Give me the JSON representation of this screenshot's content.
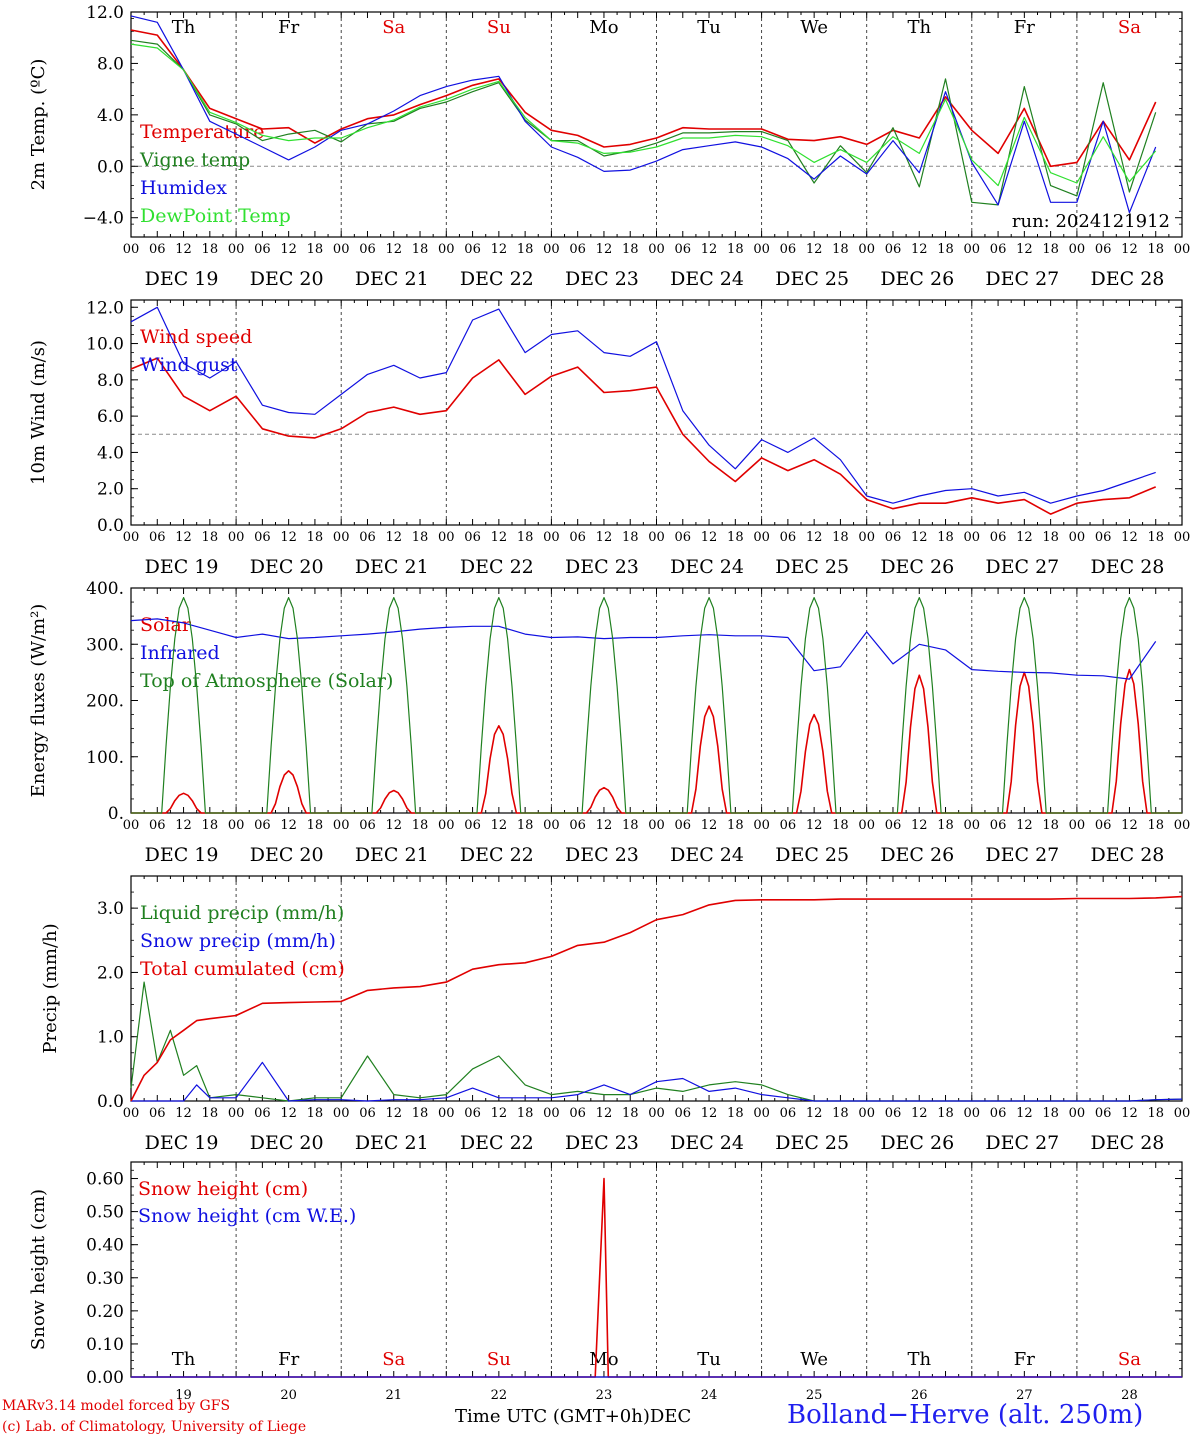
{
  "colors": {
    "red": "#e00000",
    "green": "#208020",
    "blue": "#1010e0",
    "lightgreen": "#30e030",
    "axis": "#000000",
    "refline": "#8a8a8a"
  },
  "x_axis": {
    "tick_hours": [
      "00",
      "06",
      "12",
      "18"
    ],
    "final_tick": "00",
    "dates": [
      "DEC 19",
      "DEC 20",
      "DEC 21",
      "DEC 22",
      "DEC 23",
      "DEC 24",
      "DEC 25",
      "DEC 26",
      "DEC 27",
      "DEC 28"
    ],
    "weekdays": [
      "Th",
      "Fr",
      "Sa",
      "Su",
      "Mo",
      "Tu",
      "We",
      "Th",
      "Fr",
      "Sa"
    ],
    "weekend_flags": [
      false,
      false,
      true,
      true,
      false,
      false,
      false,
      false,
      false,
      true
    ],
    "day_numbers": [
      "19",
      "20",
      "21",
      "22",
      "23",
      "24",
      "25",
      "26",
      "27",
      "28"
    ],
    "title": "Time UTC (GMT+0h)",
    "month": "DEC"
  },
  "footer": {
    "credit_line1": "MARv3.14 model forced by GFS",
    "credit_line2": "(c) Lab. of Climatology, University of Liege",
    "station": "Bolland−Herve (alt. 250m)"
  },
  "chart_data": [
    {
      "type": "line",
      "ylabel": "2m Temp. (ºC)",
      "ylim": [
        -5.5,
        12.0
      ],
      "yticks": [
        "12.0",
        "8.0",
        "4.0",
        "0.0",
        "−4.0"
      ],
      "ytick_values": [
        12,
        8,
        4,
        0,
        -4
      ],
      "reference_line": 0,
      "annotation": "run: 2024121912",
      "x_hours": [
        0,
        6,
        12,
        18,
        24,
        30,
        36,
        42,
        48,
        54,
        60,
        66,
        72,
        78,
        84,
        90,
        96,
        102,
        108,
        114,
        120,
        126,
        132,
        138,
        144,
        150,
        156,
        162,
        168,
        174,
        180,
        186,
        192,
        198,
        204,
        210,
        216,
        222,
        228,
        234
      ],
      "series": [
        {
          "name": "Temperature",
          "color_key": "red",
          "values": [
            10.6,
            10.2,
            7.5,
            4.5,
            3.7,
            2.9,
            3.0,
            1.8,
            2.9,
            3.7,
            4.0,
            4.8,
            5.5,
            6.3,
            6.8,
            4.2,
            2.8,
            2.4,
            1.5,
            1.7,
            2.2,
            3.0,
            2.9,
            2.9,
            2.9,
            2.1,
            2.0,
            2.3,
            1.7,
            2.8,
            2.2,
            5.4,
            2.8,
            1.0,
            4.5,
            0.0,
            0.3,
            3.5,
            0.5,
            5.0
          ]
        },
        {
          "name": "Vigne temp",
          "color_key": "green",
          "values": [
            9.8,
            9.5,
            7.5,
            4.0,
            3.3,
            2.0,
            2.5,
            2.8,
            1.9,
            3.3,
            3.5,
            4.5,
            5.0,
            5.8,
            6.5,
            3.6,
            2.0,
            2.0,
            0.8,
            1.2,
            1.8,
            2.6,
            2.6,
            2.7,
            2.7,
            2.0,
            -1.3,
            1.6,
            -0.5,
            3.0,
            -1.6,
            6.8,
            -2.8,
            -3.0,
            6.2,
            -1.5,
            -2.3,
            6.5,
            -2.0,
            4.2
          ]
        },
        {
          "name": "Humidex",
          "color_key": "blue",
          "values": [
            11.7,
            11.2,
            7.5,
            3.5,
            2.5,
            1.5,
            0.5,
            1.5,
            2.8,
            3.3,
            4.3,
            5.5,
            6.2,
            6.7,
            7.0,
            3.5,
            1.5,
            0.7,
            -0.4,
            -0.3,
            0.4,
            1.3,
            1.6,
            1.9,
            1.5,
            0.6,
            -1.0,
            0.8,
            -0.6,
            2.0,
            -0.5,
            5.8,
            0.3,
            -3.0,
            3.5,
            -2.8,
            -2.8,
            3.5,
            -3.6,
            1.5
          ]
        },
        {
          "name": "DewPoint Temp",
          "color_key": "lightgreen",
          "values": [
            9.5,
            9.2,
            7.5,
            4.2,
            3.4,
            2.4,
            2.0,
            2.2,
            2.2,
            3.0,
            3.6,
            4.6,
            5.2,
            6.0,
            6.6,
            3.8,
            2.0,
            1.8,
            1.0,
            1.1,
            1.5,
            2.2,
            2.2,
            2.4,
            2.3,
            1.6,
            0.3,
            1.3,
            0.3,
            2.3,
            1.0,
            5.2,
            0.5,
            -1.5,
            3.8,
            -0.5,
            -1.3,
            2.3,
            -1.2,
            1.2
          ]
        }
      ]
    },
    {
      "type": "line",
      "ylabel": "10m Wind (m/s)",
      "ylim": [
        0,
        12.4
      ],
      "yticks": [
        "12.0",
        "10.0",
        "8.0",
        "6.0",
        "4.0",
        "2.0",
        "0.0"
      ],
      "ytick_values": [
        12,
        10,
        8,
        6,
        4,
        2,
        0
      ],
      "reference_line": 5,
      "x_hours": [
        0,
        6,
        12,
        18,
        24,
        30,
        36,
        42,
        48,
        54,
        60,
        66,
        72,
        78,
        84,
        90,
        96,
        102,
        108,
        114,
        120,
        126,
        132,
        138,
        144,
        150,
        156,
        162,
        168,
        174,
        180,
        186,
        192,
        198,
        204,
        210,
        216,
        222,
        228,
        234
      ],
      "series": [
        {
          "name": "Wind speed",
          "color_key": "red",
          "values": [
            8.6,
            9.2,
            7.1,
            6.3,
            7.1,
            5.3,
            4.9,
            4.8,
            5.3,
            6.2,
            6.5,
            6.1,
            6.3,
            8.1,
            9.1,
            7.2,
            8.2,
            8.7,
            7.3,
            7.4,
            7.6,
            5.0,
            3.5,
            2.4,
            3.7,
            3.0,
            3.6,
            2.8,
            1.4,
            0.9,
            1.2,
            1.2,
            1.5,
            1.2,
            1.4,
            0.6,
            1.2,
            1.4,
            1.5,
            2.1
          ]
        },
        {
          "name": "Wind gust",
          "color_key": "blue",
          "values": [
            11.2,
            12.0,
            8.9,
            8.1,
            9.0,
            6.6,
            6.2,
            6.1,
            7.2,
            8.3,
            8.8,
            8.1,
            8.4,
            11.3,
            11.9,
            9.5,
            10.5,
            10.7,
            9.5,
            9.3,
            10.1,
            6.3,
            4.4,
            3.1,
            4.7,
            4.0,
            4.8,
            3.6,
            1.6,
            1.2,
            1.6,
            1.9,
            2.0,
            1.6,
            1.8,
            1.2,
            1.6,
            1.9,
            2.4,
            2.9
          ]
        }
      ]
    },
    {
      "type": "line",
      "ylabel": "Energy fluxes (W/m²)",
      "ylim": [
        0,
        400
      ],
      "yticks": [
        "400.",
        "300.",
        "200.",
        "100.",
        "0."
      ],
      "ytick_values": [
        400,
        300,
        200,
        100,
        0
      ],
      "x_hours": [
        0,
        6,
        12,
        18,
        24,
        30,
        36,
        42,
        48,
        54,
        60,
        66,
        72,
        78,
        84,
        90,
        96,
        102,
        108,
        114,
        120,
        126,
        132,
        138,
        144,
        150,
        156,
        162,
        168,
        174,
        180,
        186,
        192,
        198,
        204,
        210,
        216,
        222,
        228,
        234
      ],
      "series": [
        {
          "name": "Solar",
          "color_key": "red",
          "daily_peak_hour": 12,
          "daily_peaks": [
            35,
            75,
            40,
            155,
            45,
            190,
            175,
            245,
            250,
            255
          ]
        },
        {
          "name": "Infrared",
          "color_key": "blue",
          "values": [
            342,
            345,
            338,
            325,
            312,
            318,
            310,
            312,
            315,
            318,
            322,
            327,
            330,
            332,
            332,
            318,
            312,
            313,
            310,
            312,
            312,
            315,
            317,
            315,
            315,
            312,
            253,
            260,
            322,
            265,
            300,
            290,
            255,
            252,
            250,
            249,
            245,
            244,
            238,
            305
          ]
        },
        {
          "name": "Top of Atmosphere (Solar)",
          "color_key": "green",
          "daily_peak_hour": 12,
          "daily_peaks": [
            383,
            383,
            383,
            383,
            383,
            383,
            383,
            383,
            383,
            383
          ]
        }
      ]
    },
    {
      "type": "line",
      "ylabel": "Precip (mm/h)",
      "ylim": [
        0,
        3.5
      ],
      "yticks": [
        "3.0",
        "2.0",
        "1.0",
        "0.0"
      ],
      "ytick_values": [
        3,
        2,
        1,
        0
      ],
      "x_hours": [
        0,
        3,
        6,
        9,
        12,
        15,
        18,
        24,
        30,
        36,
        42,
        48,
        54,
        60,
        66,
        72,
        78,
        84,
        90,
        96,
        102,
        108,
        114,
        120,
        126,
        132,
        138,
        144,
        150,
        156,
        162,
        168,
        174,
        180,
        186,
        192,
        198,
        204,
        210,
        216,
        222,
        228,
        234,
        240
      ],
      "series": [
        {
          "name": "Liquid precip (mm/h)",
          "color_key": "green",
          "values": [
            0.2,
            1.85,
            0.6,
            1.1,
            0.4,
            0.55,
            0.05,
            0.1,
            0.05,
            0.0,
            0.05,
            0.05,
            0.7,
            0.1,
            0.05,
            0.1,
            0.5,
            0.7,
            0.25,
            0.1,
            0.15,
            0.1,
            0.1,
            0.2,
            0.15,
            0.25,
            0.3,
            0.25,
            0.1,
            0.0,
            0.0,
            0.0,
            0.0,
            0.0,
            0.0,
            0.0,
            0.0,
            0.0,
            0.0,
            0.0,
            0.0,
            0.0,
            0.02,
            0.03
          ]
        },
        {
          "name": "Snow precip (mm/h)",
          "color_key": "blue",
          "values": [
            0.0,
            0.0,
            0.0,
            0.0,
            0.0,
            0.25,
            0.05,
            0.05,
            0.6,
            0.0,
            0.02,
            0.02,
            0.0,
            0.02,
            0.02,
            0.05,
            0.2,
            0.05,
            0.05,
            0.05,
            0.1,
            0.25,
            0.1,
            0.3,
            0.35,
            0.15,
            0.2,
            0.1,
            0.05,
            0.0,
            0.0,
            0.0,
            0.0,
            0.0,
            0.0,
            0.0,
            0.0,
            0.0,
            0.0,
            0.0,
            0.0,
            0.0,
            0.02,
            0.03
          ]
        },
        {
          "name": "Total cumulated (cm)",
          "color_key": "red",
          "values": [
            0.0,
            0.4,
            0.6,
            0.95,
            1.1,
            1.25,
            1.28,
            1.33,
            1.52,
            1.53,
            1.54,
            1.55,
            1.72,
            1.76,
            1.78,
            1.85,
            2.05,
            2.12,
            2.15,
            2.25,
            2.42,
            2.47,
            2.62,
            2.82,
            2.9,
            3.05,
            3.12,
            3.13,
            3.13,
            3.13,
            3.14,
            3.14,
            3.14,
            3.14,
            3.14,
            3.14,
            3.14,
            3.14,
            3.14,
            3.15,
            3.15,
            3.15,
            3.16,
            3.18
          ]
        }
      ]
    },
    {
      "type": "line",
      "ylabel": "Snow height (cm)",
      "ylim": [
        0,
        0.65
      ],
      "yticks": [
        "0.60",
        "0.50",
        "0.40",
        "0.30",
        "0.20",
        "0.10",
        "0.00"
      ],
      "ytick_values": [
        0.6,
        0.5,
        0.4,
        0.3,
        0.2,
        0.1,
        0
      ],
      "x_hours": [
        0,
        106,
        108,
        109,
        240
      ],
      "series": [
        {
          "name": "Snow height (cm)",
          "color_key": "red",
          "values": [
            0,
            0,
            0.6,
            0,
            0
          ]
        },
        {
          "name": "Snow height (cm W.E.)",
          "color_key": "blue",
          "values": [
            0,
            0,
            0,
            0,
            0
          ]
        }
      ]
    }
  ]
}
